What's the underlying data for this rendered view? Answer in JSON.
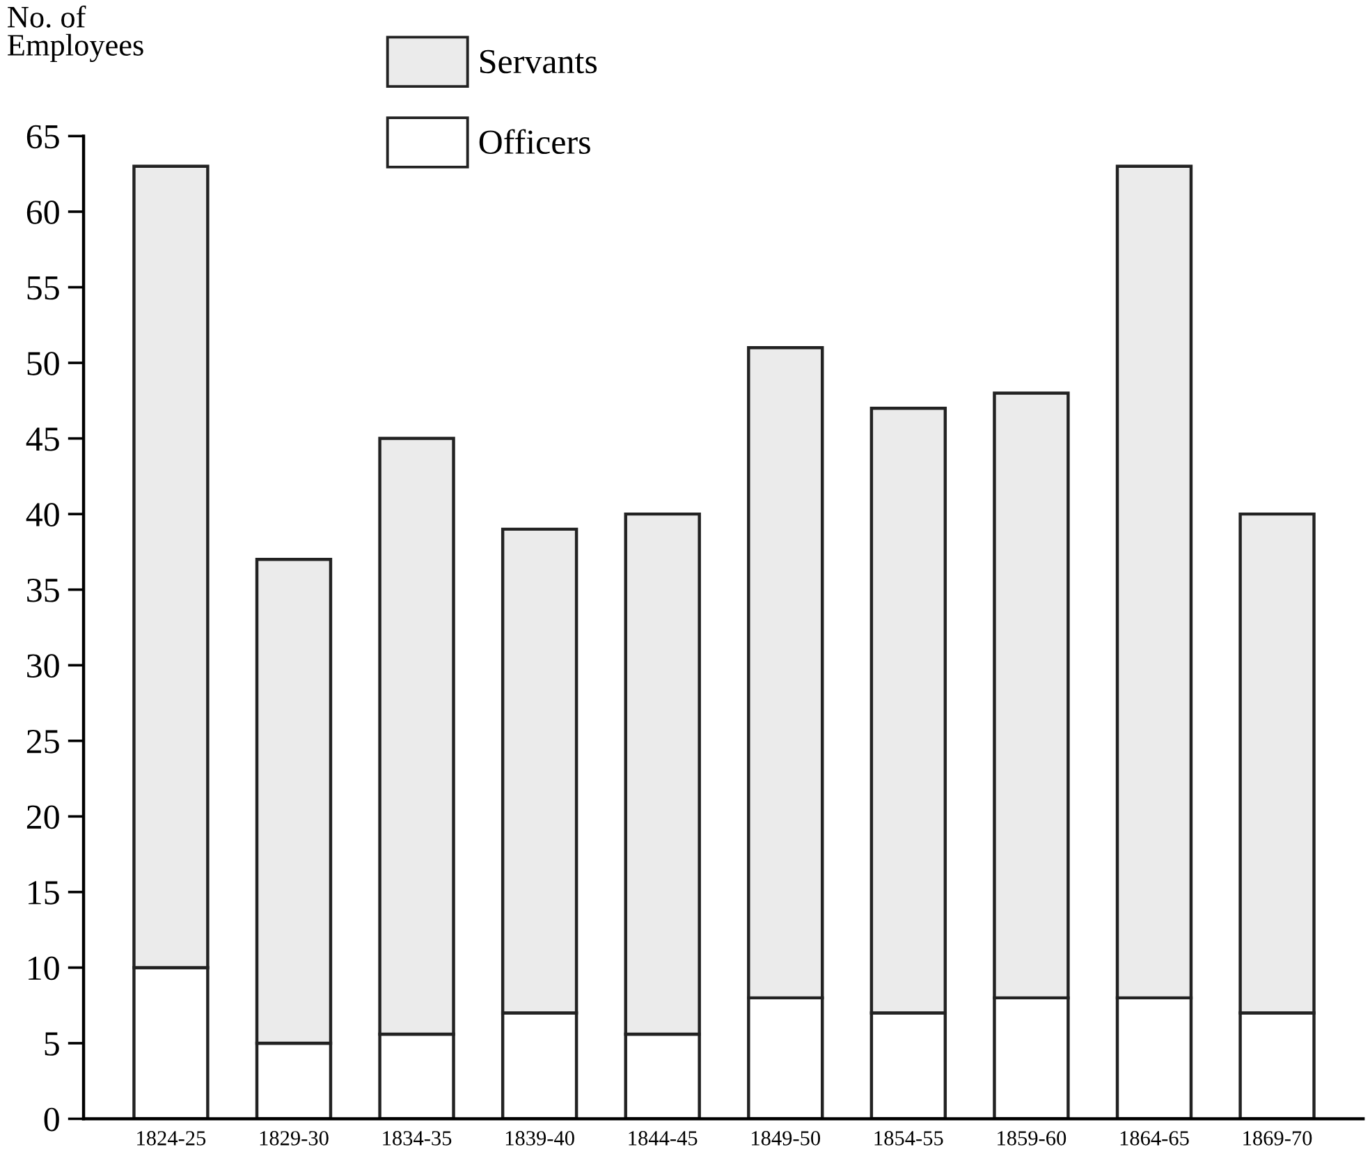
{
  "chart_data": {
    "type": "bar",
    "stacked": true,
    "ylabel": "No. of\nEmployees",
    "categories": [
      "1824-25",
      "1829-30",
      "1834-35",
      "1839-40",
      "1844-45",
      "1849-50",
      "1854-55",
      "1859-60",
      "1864-65",
      "1869-70"
    ],
    "series": [
      {
        "name": "Officers",
        "color": "#ffffff",
        "values": [
          10,
          5,
          5.6,
          7,
          5.6,
          8,
          7,
          8,
          8,
          7
        ]
      },
      {
        "name": "Servants",
        "color": "#ebebeb",
        "values": [
          53,
          32,
          39.4,
          32,
          34.4,
          43,
          40,
          40,
          55,
          33
        ]
      }
    ],
    "ylim": [
      0,
      65
    ],
    "yticks": [
      0,
      5,
      10,
      15,
      20,
      25,
      30,
      35,
      40,
      45,
      50,
      55,
      60,
      65
    ],
    "legend": "top",
    "grid": false
  }
}
